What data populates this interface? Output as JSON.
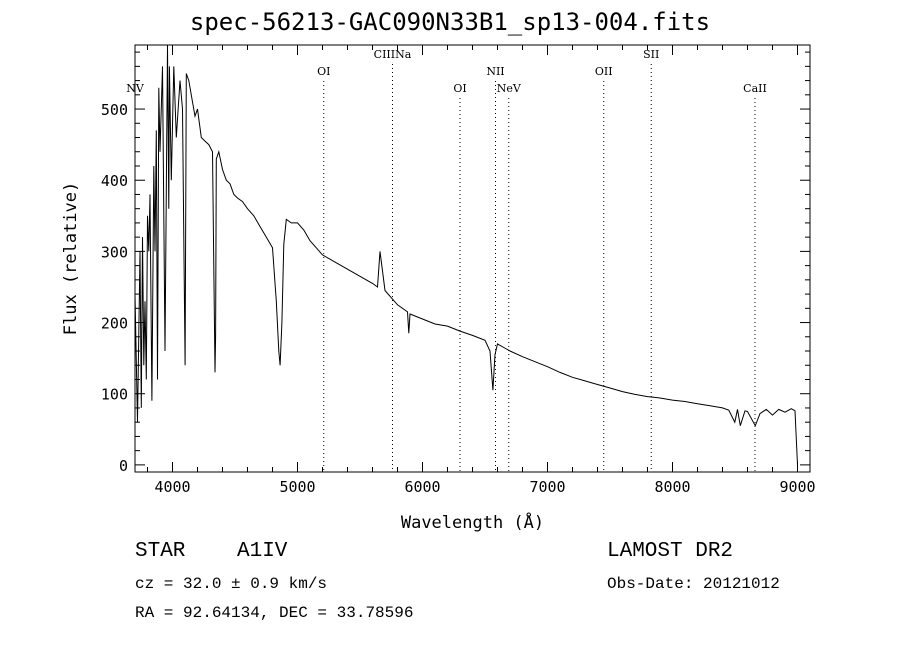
{
  "title": "spec-56213-GAC090N33B1_sp13-004.fits",
  "info": {
    "obj_class": "STAR",
    "subclass": "A1IV",
    "survey": "LAMOST DR2",
    "cz": "cz = 32.0 ± 0.9 km/s",
    "obs_date": "Obs-Date: 20121012",
    "radec": "RA =  92.64134, DEC =  33.78596"
  },
  "chart_data": {
    "type": "line",
    "xlabel": "Wavelength (Å)",
    "ylabel": "Flux (relative)",
    "xlim": [
      3700,
      9100
    ],
    "ylim": [
      -10,
      590
    ],
    "xticks": [
      4000,
      5000,
      6000,
      7000,
      8000,
      9000
    ],
    "yticks": [
      0,
      100,
      200,
      300,
      400,
      500
    ],
    "line_markers": [
      {
        "name": "NV",
        "wavelength": 3700,
        "row": 2
      },
      {
        "name": "OI",
        "wavelength": 5210,
        "row": 1
      },
      {
        "name": "CIIINa",
        "wavelength": 5760,
        "row": 0
      },
      {
        "name": "OI",
        "wavelength": 6300,
        "row": 2
      },
      {
        "name": "NII",
        "wavelength": 6584,
        "row": 1
      },
      {
        "name": "NeV",
        "wavelength": 6690,
        "row": 2
      },
      {
        "name": "OII",
        "wavelength": 7450,
        "row": 1
      },
      {
        "name": "SII",
        "wavelength": 7830,
        "row": 0
      },
      {
        "name": "CaII",
        "wavelength": 8660,
        "row": 2
      }
    ],
    "spectrum": {
      "x": [
        3700,
        3720,
        3740,
        3750,
        3760,
        3770,
        3780,
        3790,
        3800,
        3810,
        3820,
        3835,
        3850,
        3860,
        3870,
        3880,
        3890,
        3900,
        3920,
        3940,
        3960,
        3970,
        3975,
        3990,
        4010,
        4030,
        4060,
        4080,
        4101,
        4110,
        4130,
        4160,
        4180,
        4200,
        4230,
        4260,
        4290,
        4320,
        4340,
        4345,
        4350,
        4370,
        4400,
        4430,
        4460,
        4490,
        4520,
        4560,
        4600,
        4650,
        4700,
        4750,
        4800,
        4830,
        4850,
        4861,
        4875,
        4890,
        4910,
        4950,
        5000,
        5050,
        5100,
        5150,
        5200,
        5300,
        5400,
        5500,
        5600,
        5640,
        5660,
        5700,
        5800,
        5880,
        5890,
        5900,
        6000,
        6100,
        6200,
        6300,
        6400,
        6500,
        6540,
        6563,
        6580,
        6600,
        6650,
        6700,
        6800,
        6900,
        7000,
        7100,
        7200,
        7300,
        7400,
        7500,
        7600,
        7700,
        7800,
        7850,
        7900,
        8000,
        8100,
        8200,
        8300,
        8400,
        8450,
        8498,
        8520,
        8542,
        8580,
        8600,
        8662,
        8700,
        8750,
        8800,
        8850,
        8900,
        8950,
        8980,
        9000
      ],
      "y": [
        240,
        60,
        300,
        80,
        320,
        140,
        230,
        120,
        350,
        300,
        380,
        90,
        420,
        300,
        470,
        120,
        530,
        440,
        560,
        160,
        590,
        360,
        560,
        400,
        560,
        460,
        540,
        500,
        140,
        550,
        540,
        510,
        490,
        500,
        460,
        455,
        450,
        440,
        130,
        180,
        430,
        440,
        415,
        400,
        395,
        380,
        375,
        370,
        360,
        350,
        335,
        320,
        305,
        230,
        160,
        140,
        200,
        310,
        345,
        340,
        340,
        330,
        315,
        305,
        295,
        285,
        275,
        265,
        255,
        250,
        300,
        245,
        225,
        215,
        185,
        212,
        205,
        198,
        195,
        188,
        182,
        175,
        160,
        105,
        155,
        170,
        165,
        160,
        152,
        145,
        138,
        130,
        123,
        118,
        113,
        108,
        103,
        99,
        96,
        95,
        94,
        91,
        89,
        86,
        83,
        80,
        77,
        60,
        78,
        55,
        76,
        75,
        55,
        72,
        78,
        70,
        78,
        74,
        79,
        76,
        0
      ]
    }
  }
}
